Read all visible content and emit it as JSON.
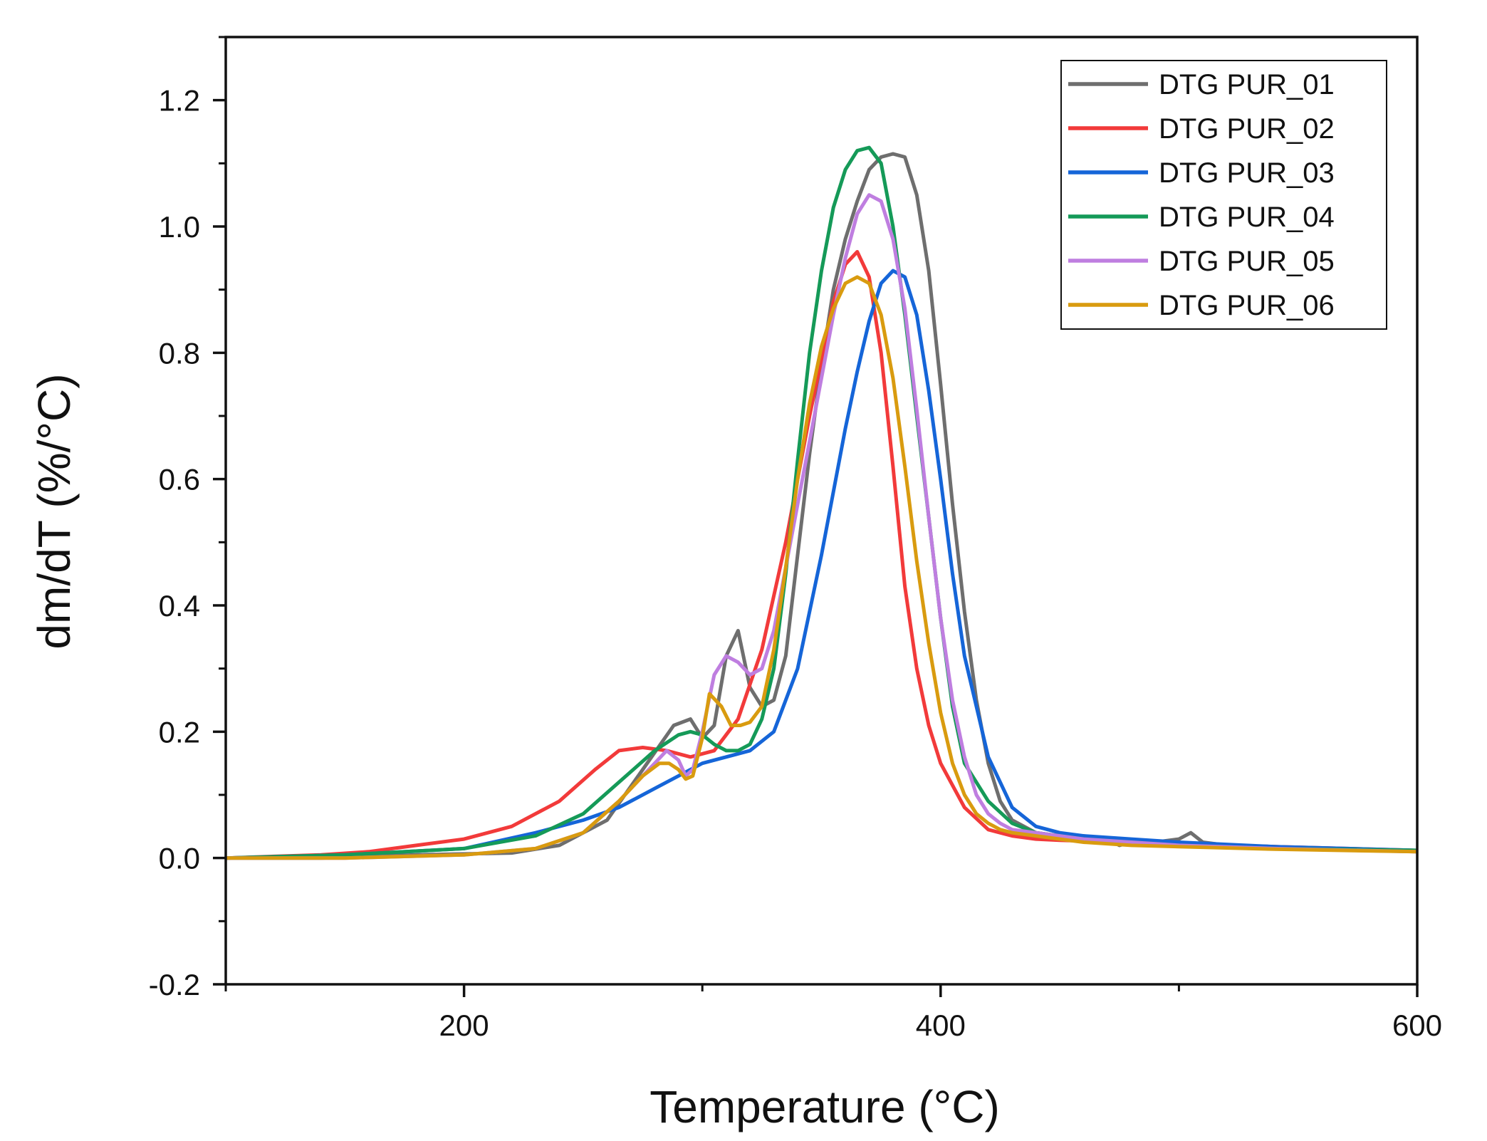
{
  "chart_data": {
    "type": "line",
    "title": "",
    "xlabel": "Temperature (°C)",
    "ylabel": "dm/dT (%/°C)",
    "xlim": [
      100,
      600
    ],
    "ylim": [
      -0.2,
      1.3
    ],
    "x_ticks": [
      200,
      400,
      600
    ],
    "x_tick_labels": [
      "200",
      "400",
      "600"
    ],
    "y_ticks": [
      -0.2,
      0.0,
      0.2,
      0.4,
      0.6,
      0.8,
      1.0,
      1.2
    ],
    "y_tick_labels": [
      "-0.2",
      "0.0",
      "0.2",
      "0.4",
      "0.6",
      "0.8",
      "1.0",
      "1.2"
    ],
    "grid": false,
    "legend_position": "top-right",
    "series": [
      {
        "name": "DTG PUR_01",
        "color": "#6e6e6e",
        "x": [
          100,
          140,
          180,
          220,
          240,
          260,
          275,
          288,
          295,
          300,
          305,
          310,
          315,
          320,
          325,
          330,
          335,
          340,
          345,
          350,
          355,
          360,
          365,
          370,
          375,
          380,
          385,
          390,
          395,
          400,
          405,
          410,
          415,
          420,
          425,
          430,
          440,
          450,
          460,
          470,
          475,
          480,
          490,
          500,
          505,
          510,
          520,
          540,
          560,
          580,
          600
        ],
        "y": [
          0.0,
          0.0,
          0.005,
          0.008,
          0.02,
          0.06,
          0.14,
          0.21,
          0.22,
          0.19,
          0.21,
          0.32,
          0.36,
          0.27,
          0.24,
          0.25,
          0.32,
          0.48,
          0.64,
          0.78,
          0.9,
          0.98,
          1.04,
          1.09,
          1.11,
          1.115,
          1.11,
          1.05,
          0.93,
          0.75,
          0.56,
          0.39,
          0.25,
          0.15,
          0.09,
          0.06,
          0.04,
          0.035,
          0.035,
          0.03,
          0.02,
          0.025,
          0.025,
          0.03,
          0.04,
          0.025,
          0.02,
          0.018,
          0.015,
          0.012,
          0.01
        ]
      },
      {
        "name": "DTG PUR_02",
        "color": "#f23a3a",
        "x": [
          100,
          140,
          160,
          180,
          200,
          220,
          240,
          255,
          265,
          275,
          285,
          295,
          305,
          315,
          325,
          335,
          345,
          355,
          360,
          365,
          370,
          375,
          380,
          385,
          390,
          395,
          400,
          410,
          420,
          430,
          440,
          450,
          460,
          480,
          500,
          540,
          600
        ],
        "y": [
          0.0,
          0.005,
          0.01,
          0.02,
          0.03,
          0.05,
          0.09,
          0.14,
          0.17,
          0.175,
          0.17,
          0.16,
          0.17,
          0.22,
          0.33,
          0.5,
          0.7,
          0.88,
          0.94,
          0.96,
          0.92,
          0.8,
          0.62,
          0.43,
          0.3,
          0.21,
          0.15,
          0.08,
          0.045,
          0.035,
          0.03,
          0.028,
          0.027,
          0.025,
          0.022,
          0.018,
          0.012
        ]
      },
      {
        "name": "DTG PUR_03",
        "color": "#1565d8",
        "x": [
          100,
          150,
          200,
          230,
          250,
          265,
          280,
          290,
          300,
          310,
          320,
          330,
          340,
          350,
          360,
          365,
          370,
          375,
          380,
          385,
          390,
          395,
          400,
          405,
          410,
          420,
          430,
          440,
          450,
          460,
          480,
          500,
          540,
          600
        ],
        "y": [
          0.0,
          0.005,
          0.015,
          0.04,
          0.06,
          0.08,
          0.11,
          0.13,
          0.15,
          0.16,
          0.17,
          0.2,
          0.3,
          0.48,
          0.68,
          0.77,
          0.85,
          0.91,
          0.93,
          0.92,
          0.86,
          0.74,
          0.6,
          0.45,
          0.32,
          0.16,
          0.08,
          0.05,
          0.04,
          0.035,
          0.03,
          0.025,
          0.018,
          0.012
        ]
      },
      {
        "name": "DTG PUR_04",
        "color": "#159a58",
        "x": [
          100,
          150,
          200,
          230,
          250,
          265,
          280,
          290,
          295,
          300,
          305,
          310,
          315,
          320,
          325,
          330,
          335,
          340,
          345,
          350,
          355,
          360,
          365,
          370,
          375,
          380,
          385,
          390,
          395,
          400,
          405,
          410,
          420,
          430,
          440,
          450,
          460,
          480,
          500,
          540,
          600
        ],
        "y": [
          0.0,
          0.005,
          0.015,
          0.035,
          0.07,
          0.12,
          0.17,
          0.195,
          0.2,
          0.195,
          0.18,
          0.17,
          0.17,
          0.18,
          0.22,
          0.3,
          0.45,
          0.63,
          0.8,
          0.93,
          1.03,
          1.09,
          1.12,
          1.125,
          1.1,
          1.0,
          0.86,
          0.7,
          0.54,
          0.38,
          0.24,
          0.15,
          0.09,
          0.055,
          0.04,
          0.035,
          0.03,
          0.025,
          0.02,
          0.015,
          0.012
        ]
      },
      {
        "name": "DTG PUR_05",
        "color": "#bf7ee0",
        "x": [
          100,
          150,
          200,
          230,
          250,
          265,
          280,
          285,
          290,
          293,
          296,
          300,
          305,
          310,
          315,
          320,
          325,
          330,
          335,
          340,
          345,
          350,
          355,
          360,
          365,
          370,
          375,
          380,
          385,
          390,
          395,
          400,
          405,
          410,
          415,
          420,
          425,
          430,
          440,
          450,
          460,
          480,
          500,
          540,
          600
        ],
        "y": [
          0.0,
          0.0,
          0.005,
          0.015,
          0.04,
          0.09,
          0.15,
          0.17,
          0.155,
          0.13,
          0.14,
          0.2,
          0.29,
          0.32,
          0.31,
          0.29,
          0.3,
          0.36,
          0.46,
          0.56,
          0.66,
          0.76,
          0.86,
          0.95,
          1.02,
          1.05,
          1.04,
          0.98,
          0.87,
          0.71,
          0.54,
          0.38,
          0.25,
          0.16,
          0.1,
          0.07,
          0.055,
          0.045,
          0.04,
          0.035,
          0.03,
          0.025,
          0.02,
          0.015,
          0.01
        ]
      },
      {
        "name": "DTG PUR_06",
        "color": "#d99b0f",
        "x": [
          100,
          150,
          200,
          230,
          250,
          265,
          275,
          282,
          286,
          290,
          293,
          296,
          300,
          303,
          308,
          312,
          316,
          320,
          325,
          330,
          335,
          340,
          345,
          350,
          355,
          360,
          365,
          370,
          375,
          380,
          385,
          390,
          395,
          400,
          405,
          410,
          415,
          420,
          425,
          430,
          440,
          450,
          460,
          480,
          500,
          540,
          600
        ],
        "y": [
          0.0,
          0.0,
          0.005,
          0.015,
          0.04,
          0.09,
          0.13,
          0.15,
          0.15,
          0.14,
          0.125,
          0.13,
          0.19,
          0.26,
          0.24,
          0.21,
          0.21,
          0.215,
          0.24,
          0.33,
          0.46,
          0.6,
          0.72,
          0.81,
          0.87,
          0.91,
          0.92,
          0.91,
          0.86,
          0.76,
          0.62,
          0.47,
          0.34,
          0.23,
          0.15,
          0.1,
          0.07,
          0.055,
          0.045,
          0.04,
          0.035,
          0.03,
          0.025,
          0.02,
          0.018,
          0.014,
          0.01
        ]
      }
    ]
  }
}
